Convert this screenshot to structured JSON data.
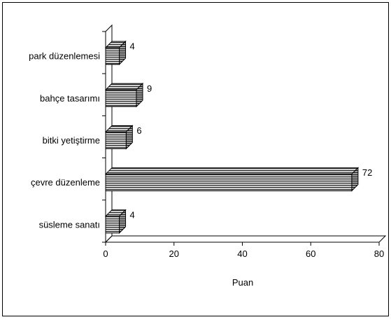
{
  "chart_data": {
    "type": "bar",
    "orientation": "horizontal",
    "style": "3d",
    "categories": [
      "park düzenlemesi",
      "bahçe tasarımı",
      "bitki yetiştirme",
      "çevre düzenleme",
      "süsleme sanatı"
    ],
    "values": [
      4,
      9,
      6,
      72,
      4
    ],
    "data_labels": [
      "4",
      "9",
      "6",
      "72",
      "4"
    ],
    "xlabel": "Puan",
    "ylabel": "",
    "xlim": [
      0,
      80
    ],
    "xticks": [
      "0",
      "20",
      "40",
      "60",
      "80"
    ],
    "grid": false,
    "legend": "none",
    "colors": {
      "bar_fill": "#9a9a9a",
      "bar_stripe": "#2b2b2b",
      "axis": "#000000",
      "frame": "#000000"
    }
  }
}
